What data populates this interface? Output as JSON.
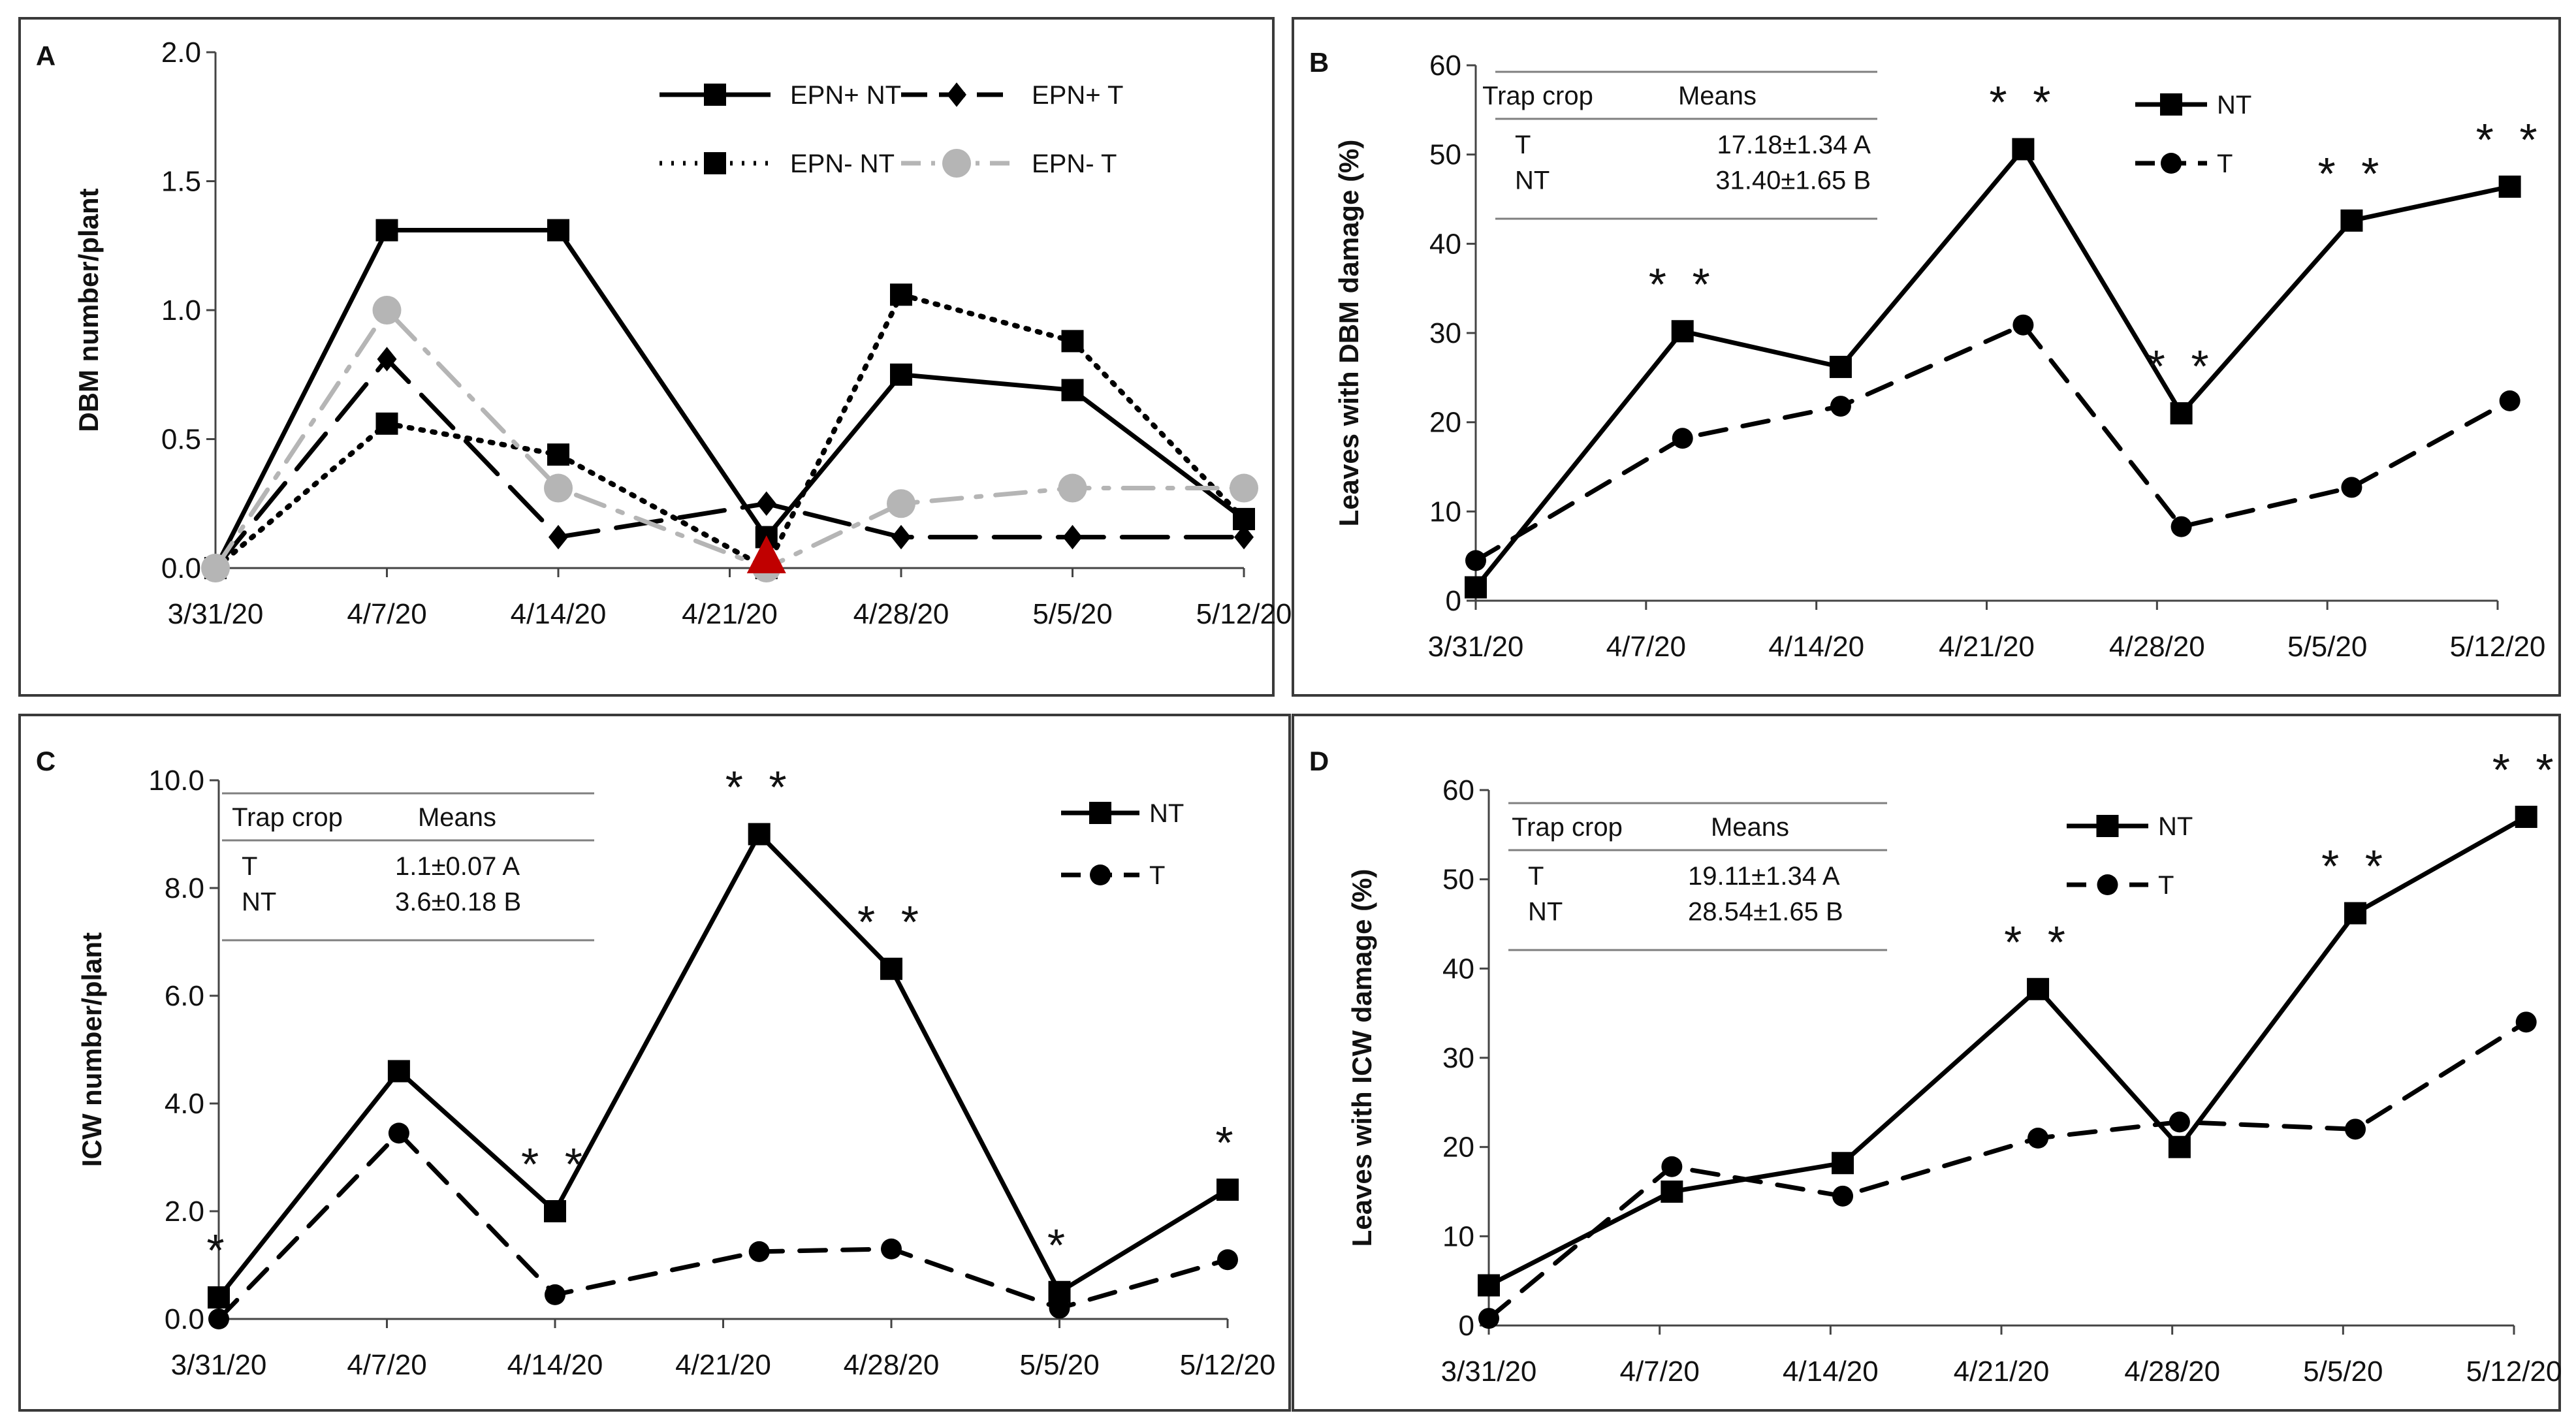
{
  "colors": {
    "black": "#000000",
    "gray": "#b5b5b5",
    "red": "#c00000",
    "frame": "#3a3a3a",
    "rule": "#7f7f7f"
  },
  "chart_data": [
    {
      "panel": "A",
      "type": "line",
      "ylabel": "DBM number/plant",
      "ylim": [
        0,
        2
      ],
      "yticks": [
        "0.0",
        "0.5",
        "1.0",
        "1.5",
        "2.0"
      ],
      "xticks": [
        "3/31/20",
        "4/7/20",
        "4/14/20",
        "4/21/20",
        "4/28/20",
        "5/5/20",
        "5/12/20"
      ],
      "x_range": [
        0,
        42
      ],
      "annotation": {
        "type": "red-triangle-marker",
        "x": 22.5,
        "y": 0
      },
      "series": [
        {
          "name": "EPN+ NT",
          "style": "solid",
          "marker": "square",
          "color": "#000000",
          "x": [
            0,
            7,
            14,
            22.5,
            28,
            35,
            42
          ],
          "values": [
            0.0,
            1.31,
            1.31,
            0.12,
            0.75,
            0.69,
            0.19
          ]
        },
        {
          "name": "EPN+ T",
          "style": "longdash",
          "marker": "diamond",
          "color": "#000000",
          "x": [
            0,
            7,
            14,
            22.5,
            28,
            35,
            42
          ],
          "values": [
            0.0,
            0.81,
            0.12,
            0.25,
            0.12,
            0.12,
            0.12
          ]
        },
        {
          "name": "EPN- NT",
          "style": "dotted",
          "marker": "square",
          "color": "#000000",
          "x": [
            0,
            7,
            14,
            22.5,
            28,
            35,
            42
          ],
          "values": [
            0.0,
            0.56,
            0.44,
            0.0,
            1.06,
            0.88,
            0.19
          ]
        },
        {
          "name": "EPN- T",
          "style": "dashdot",
          "marker": "circle",
          "color": "#b5b5b5",
          "x": [
            0,
            7,
            14,
            22.5,
            28,
            35,
            42
          ],
          "values": [
            0.0,
            1.0,
            0.31,
            0.0,
            0.25,
            0.31,
            0.31
          ]
        }
      ]
    },
    {
      "panel": "B",
      "type": "line",
      "ylabel": "Leaves with DBM damage (%)",
      "ylim": [
        0,
        60
      ],
      "yticks": [
        "0",
        "10",
        "20",
        "30",
        "40",
        "50",
        "60"
      ],
      "xticks": [
        "3/31/20",
        "4/7/20",
        "4/14/20",
        "4/21/20",
        "4/28/20",
        "5/5/20",
        "5/12/20"
      ],
      "x_range": [
        0,
        42
      ],
      "series": [
        {
          "name": "NT",
          "style": "solid",
          "marker": "square",
          "color": "#000000",
          "x": [
            0,
            8.5,
            15,
            22.5,
            29,
            36,
            42.5
          ],
          "values": [
            1.5,
            30.2,
            26.2,
            50.6,
            21.0,
            42.6,
            46.4
          ]
        },
        {
          "name": "T",
          "style": "dash",
          "marker": "circle",
          "color": "#000000",
          "x": [
            0,
            8.5,
            15,
            22.5,
            29,
            36,
            42.5
          ],
          "values": [
            4.5,
            18.2,
            21.8,
            30.9,
            8.3,
            12.7,
            22.4
          ]
        }
      ],
      "significance": [
        {
          "x": 8.5,
          "y": 30.2,
          "label": "* *"
        },
        {
          "x": 22.5,
          "y": 50.6,
          "label": "* *"
        },
        {
          "x": 29,
          "y": 21.0,
          "label": "* *"
        },
        {
          "x": 36,
          "y": 42.6,
          "label": "* *"
        },
        {
          "x": 42.5,
          "y": 46.4,
          "label": "* *"
        }
      ],
      "table": {
        "headers": [
          "Trap crop",
          "Means"
        ],
        "rows": [
          [
            "T",
            "17.18±1.34 A"
          ],
          [
            "NT",
            "31.40±1.65 B"
          ]
        ]
      }
    },
    {
      "panel": "C",
      "type": "line",
      "ylabel": "ICW number/plant",
      "ylim": [
        0,
        10
      ],
      "yticks": [
        "0.0",
        "2.0",
        "4.0",
        "6.0",
        "8.0",
        "10.0"
      ],
      "xticks": [
        "3/31/20",
        "4/7/20",
        "4/14/20",
        "4/21/20",
        "4/28/20",
        "5/5/20",
        "5/12/20"
      ],
      "x_range": [
        0,
        42
      ],
      "series": [
        {
          "name": "NT",
          "style": "solid",
          "marker": "square",
          "color": "#000000",
          "x": [
            0,
            7.5,
            14,
            22.5,
            28,
            35,
            42
          ],
          "values": [
            0.4,
            4.6,
            2.0,
            9.0,
            6.5,
            0.5,
            2.4
          ]
        },
        {
          "name": "T",
          "style": "dash",
          "marker": "circle",
          "color": "#000000",
          "x": [
            0,
            7.5,
            14,
            22.5,
            28,
            35,
            42
          ],
          "values": [
            0.0,
            3.45,
            0.45,
            1.25,
            1.3,
            0.2,
            1.1
          ]
        }
      ],
      "significance": [
        {
          "x": 0,
          "y": 0.4,
          "label": "*"
        },
        {
          "x": 14,
          "y": 2.0,
          "label": "* *"
        },
        {
          "x": 22.5,
          "y": 9.0,
          "label": "* *"
        },
        {
          "x": 28,
          "y": 6.5,
          "label": "* *"
        },
        {
          "x": 35,
          "y": 0.5,
          "label": "*"
        },
        {
          "x": 42,
          "y": 2.4,
          "label": "*"
        }
      ],
      "table": {
        "headers": [
          "Trap crop",
          "Means"
        ],
        "rows": [
          [
            "T",
            "1.1±0.07 A"
          ],
          [
            "NT",
            "3.6±0.18 B"
          ]
        ]
      }
    },
    {
      "panel": "D",
      "type": "line",
      "ylabel": "Leaves with ICW damage (%)",
      "ylim": [
        0,
        60
      ],
      "yticks": [
        "0",
        "10",
        "20",
        "30",
        "40",
        "50",
        "60"
      ],
      "xticks": [
        "3/31/20",
        "4/7/20",
        "4/14/20",
        "4/21/20",
        "4/28/20",
        "5/5/20",
        "5/12/20"
      ],
      "x_range": [
        0,
        42
      ],
      "series": [
        {
          "name": "NT",
          "style": "solid",
          "marker": "square",
          "color": "#000000",
          "x": [
            0,
            7.5,
            14.5,
            22.5,
            28.3,
            35.5,
            42.5
          ],
          "values": [
            4.5,
            15.0,
            18.2,
            37.7,
            20.0,
            46.2,
            57.0
          ]
        },
        {
          "name": "T",
          "style": "dash",
          "marker": "circle",
          "color": "#000000",
          "x": [
            0,
            7.5,
            14.5,
            22.5,
            28.3,
            35.5,
            42.5
          ],
          "values": [
            0.8,
            17.8,
            14.5,
            21.0,
            22.8,
            22.0,
            34.0
          ]
        }
      ],
      "significance": [
        {
          "x": 22.5,
          "y": 37.7,
          "label": "* *"
        },
        {
          "x": 35.5,
          "y": 46.2,
          "label": "* *"
        },
        {
          "x": 42.5,
          "y": 57.0,
          "label": "* *"
        }
      ],
      "table": {
        "headers": [
          "Trap crop",
          "Means"
        ],
        "rows": [
          [
            "T",
            "19.11±1.34 A"
          ],
          [
            "NT",
            "28.54±1.65 B"
          ]
        ]
      }
    }
  ]
}
